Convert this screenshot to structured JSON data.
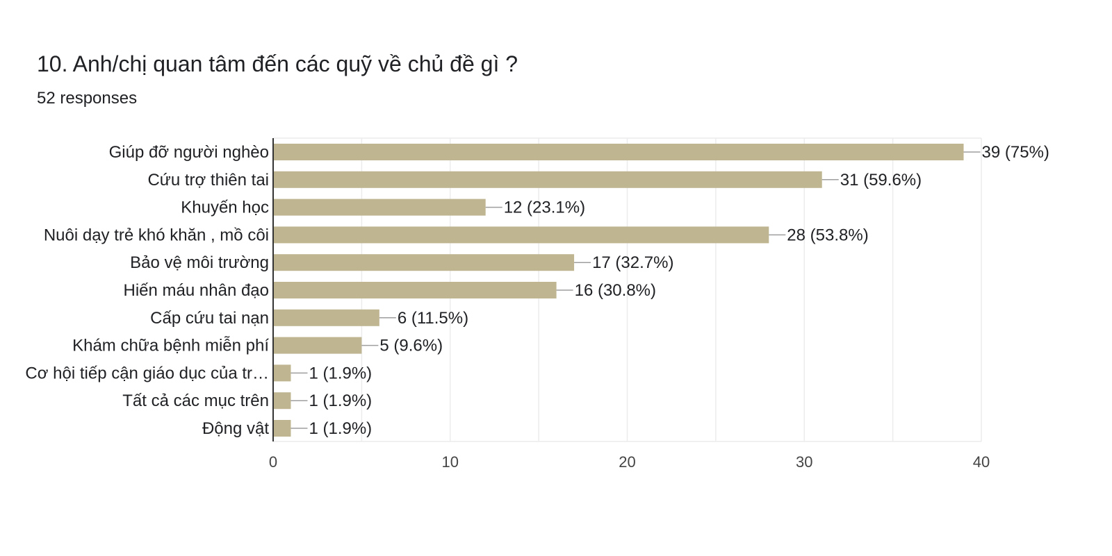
{
  "question": {
    "title": "10. Anh/chị quan tâm đến các quỹ về chủ đề gì ?",
    "responses": "52 responses"
  },
  "chart_data": {
    "type": "bar",
    "orientation": "horizontal",
    "categories": [
      "Giúp đỡ người nghèo",
      "Cứu trợ thiên tai",
      "Khuyến học",
      "Nuôi dạy trẻ khó khăn , mồ côi",
      "Bảo vệ môi trường",
      "Hiến máu nhân đạo",
      "Cấp cứu tai nạn",
      "Khám chữa bệnh miễn phí",
      "Cơ hội tiếp cận giáo dục của tr…",
      "Tất cả các mục trên",
      "Động vật"
    ],
    "values": [
      39,
      31,
      12,
      28,
      17,
      16,
      6,
      5,
      1,
      1,
      1
    ],
    "data_labels": [
      "39 (75%)",
      "31 (59.6%)",
      "12 (23.1%)",
      "28 (53.8%)",
      "17 (32.7%)",
      "16 (30.8%)",
      "6 (11.5%)",
      "5 (9.6%)",
      "1 (1.9%)",
      "1 (1.9%)",
      "1 (1.9%)"
    ],
    "xlim": [
      0,
      40
    ],
    "xticks": [
      0,
      10,
      20,
      30,
      40
    ],
    "grid": true,
    "bar_color": "#bfb691",
    "title": "",
    "xlabel": "",
    "ylabel": ""
  }
}
